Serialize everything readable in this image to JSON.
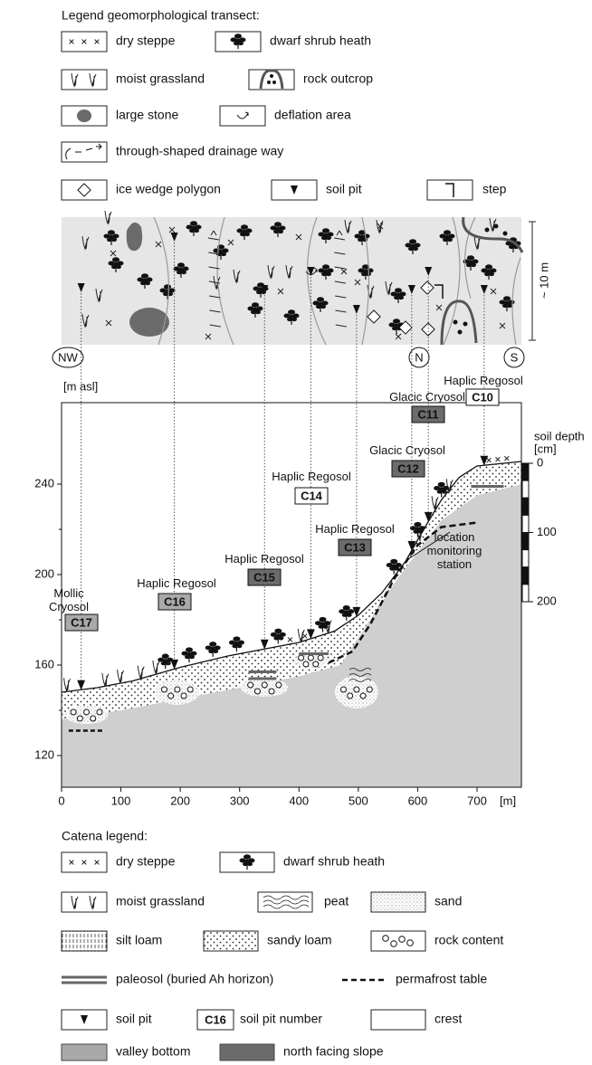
{
  "top_legend": {
    "title": "Legend geomorphological transect:",
    "items": [
      "dry steppe",
      "dwarf shrub heath",
      "moist grassland",
      "rock outcrop",
      "large stone",
      "deflation area",
      "through-shaped drainage way",
      "ice wedge polygon",
      "soil pit",
      "step"
    ]
  },
  "transect": {
    "scale": "~ 10 m",
    "directions": [
      "NW",
      "N",
      "S"
    ]
  },
  "profile": {
    "y_label": "[m asl]",
    "yticks": [
      120,
      160,
      200,
      240
    ],
    "xticks": [
      0,
      100,
      200,
      300,
      400,
      500,
      600,
      700
    ],
    "x_unit": "[m]",
    "depth_label": [
      "soil depth",
      "[cm]"
    ],
    "depth_ticks": [
      0,
      100,
      200
    ],
    "station": "location monitoring station",
    "pits": [
      {
        "name": "Mollic Cryosol",
        "code": "C17",
        "fill": "#a9a9a9"
      },
      {
        "name": "Haplic Regosol",
        "code": "C16",
        "fill": "#a9a9a9"
      },
      {
        "name": "Haplic Regosol",
        "code": "C15",
        "fill": "#6b6b6b"
      },
      {
        "name": "Haplic Regosol",
        "code": "C14",
        "fill": "#ffffff"
      },
      {
        "name": "Haplic Regosol",
        "code": "C13",
        "fill": "#6b6b6b"
      },
      {
        "name": "Glacic Cryosol",
        "code": "C12",
        "fill": "#6b6b6b"
      },
      {
        "name": "Glacic Cryosol",
        "code": "C11",
        "fill": "#6b6b6b"
      },
      {
        "name": "Haplic Regosol",
        "code": "C10",
        "fill": "#ffffff"
      }
    ]
  },
  "catena_legend": {
    "title": "Catena legend:",
    "items": [
      "dry steppe",
      "dwarf shrub heath",
      "moist grassland",
      "peat",
      "sand",
      "silt loam",
      "sandy loam",
      "rock content",
      "paleosol (buried Ah horizon)",
      "permafrost table",
      "soil pit",
      "soil pit number",
      "crest",
      "valley bottom",
      "north facing slope"
    ],
    "pit_number_example": "C16"
  }
}
